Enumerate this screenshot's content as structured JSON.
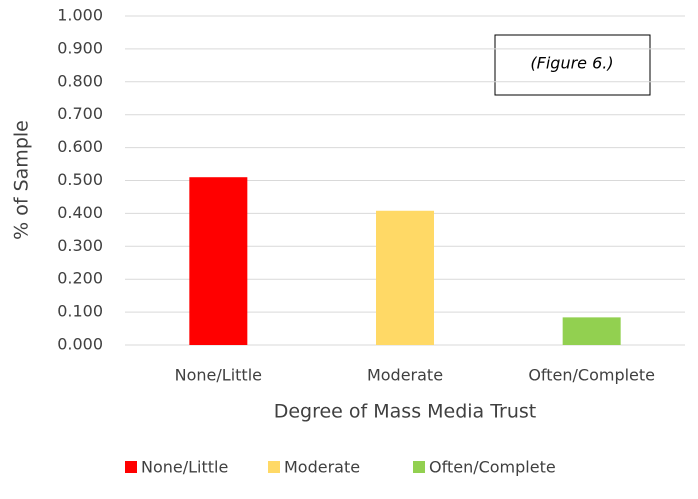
{
  "chart_data": {
    "type": "bar",
    "annotation": "(Figure 6.)",
    "x_label": "Degree of Mass Media Trust",
    "y_label": "% of Sample",
    "categories": [
      "None/Little",
      "Moderate",
      "Often/Complete"
    ],
    "values": [
      0.51,
      0.408,
      0.084
    ],
    "colors": [
      "#ff0000",
      "#ffd966",
      "#92d050"
    ],
    "ylim": [
      0,
      1
    ],
    "yticks": [
      {
        "value": 0,
        "label": "0.000"
      },
      {
        "value": 0.1,
        "label": "0.100"
      },
      {
        "value": 0.2,
        "label": "0.200"
      },
      {
        "value": 0.3,
        "label": "0.300"
      },
      {
        "value": 0.4,
        "label": "0.400"
      },
      {
        "value": 0.5,
        "label": "0.500"
      },
      {
        "value": 0.6,
        "label": "0.600"
      },
      {
        "value": 0.7,
        "label": "0.700"
      },
      {
        "value": 0.8,
        "label": "0.800"
      },
      {
        "value": 0.9,
        "label": "0.900"
      },
      {
        "value": 1,
        "label": "1.000"
      }
    ],
    "grid": true,
    "legend": "bottom"
  }
}
